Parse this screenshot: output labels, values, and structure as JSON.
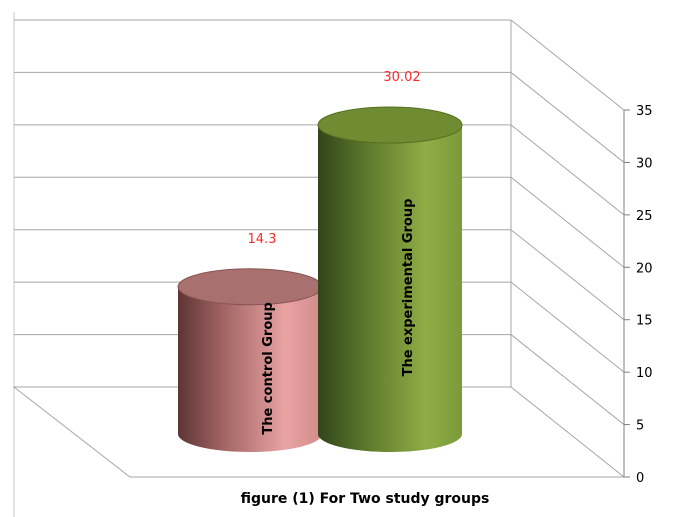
{
  "chart_data": {
    "type": "bar",
    "style": "3d-cylinder",
    "title": "figure (1) For Two study groups",
    "categories": [
      "The control Group",
      "The experimental Group"
    ],
    "values": [
      14.3,
      30.02
    ],
    "data_labels": [
      "14.3",
      "30.02"
    ],
    "ylim": [
      0,
      35
    ],
    "yticks": [
      "0",
      "5",
      "10",
      "15",
      "20",
      "25",
      "30",
      "35"
    ],
    "y_axis_position": "right",
    "grid": true,
    "legend": "none",
    "colors": {
      "control_group": "#e8a0a0",
      "experimental_group": "#7e9c3c",
      "data_label": "#ff2a2a",
      "gridline": "#a6a6a6"
    }
  }
}
